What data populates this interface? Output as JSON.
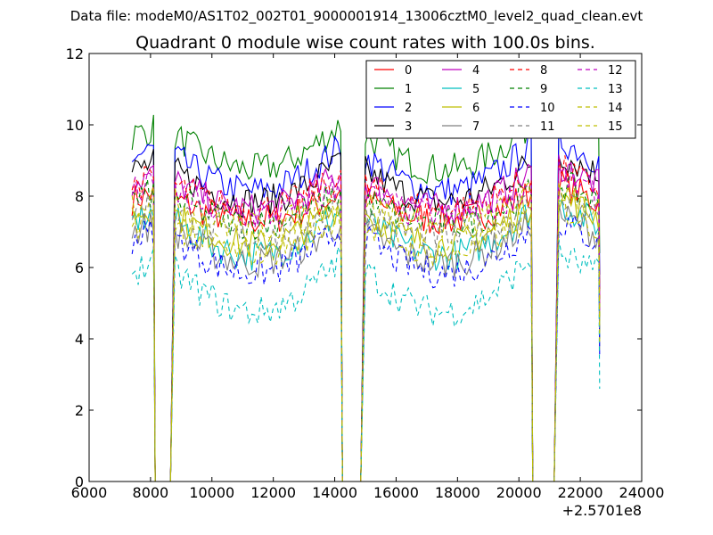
{
  "chart_data": {
    "type": "line",
    "suptitle": "Data file: modeM0/AS1T02_002T01_9000001914_13006cztM0_level2_quad_clean.evt",
    "title": "Quadrant 0 module wise count rates with 100.0s bins.",
    "xlabel": "",
    "ylabel": "",
    "x_offset_label": "+2.5701e8",
    "xlim": [
      6000,
      24000
    ],
    "ylim": [
      0,
      12
    ],
    "xticks": [
      6000,
      8000,
      10000,
      12000,
      14000,
      16000,
      18000,
      20000,
      22000,
      24000
    ],
    "yticks": [
      0,
      2,
      4,
      6,
      8,
      10,
      12
    ],
    "xtick_labels": [
      "6000",
      "8000",
      "10000",
      "12000",
      "14000",
      "16000",
      "18000",
      "20000",
      "22000",
      "24000"
    ],
    "ytick_labels": [
      "0",
      "2",
      "4",
      "6",
      "8",
      "10",
      "12"
    ],
    "grid": false,
    "legend_position": "top-right",
    "segments": [
      {
        "start": 7400,
        "end": 8100,
        "shape": "rise"
      },
      {
        "start": 8800,
        "end": 14200,
        "shape": "dip"
      },
      {
        "start": 15000,
        "end": 20400,
        "shape": "dip"
      },
      {
        "start": 21300,
        "end": 22600,
        "shape": "fall"
      }
    ],
    "gaps": [
      [
        8200,
        8700
      ],
      [
        14300,
        14900
      ],
      [
        20500,
        21200
      ]
    ],
    "series": [
      {
        "name": "0",
        "color": "#ff0000",
        "dashed": false,
        "level": 7.9,
        "dip": 0.6
      },
      {
        "name": "1",
        "color": "#008000",
        "dashed": false,
        "level": 9.7,
        "dip": 1.0
      },
      {
        "name": "2",
        "color": "#0000ff",
        "dashed": false,
        "level": 9.1,
        "dip": 1.0
      },
      {
        "name": "3",
        "color": "#000000",
        "dashed": false,
        "level": 8.7,
        "dip": 0.9
      },
      {
        "name": "4",
        "color": "#bf00bf",
        "dashed": false,
        "level": 8.4,
        "dip": 0.8
      },
      {
        "name": "5",
        "color": "#00bfbf",
        "dashed": false,
        "level": 7.3,
        "dip": 1.0
      },
      {
        "name": "6",
        "color": "#bfbf00",
        "dashed": false,
        "level": 7.5,
        "dip": 0.9
      },
      {
        "name": "7",
        "color": "#808080",
        "dashed": false,
        "level": 7.0,
        "dip": 0.9
      },
      {
        "name": "8",
        "color": "#ff0000",
        "dashed": true,
        "level": 8.3,
        "dip": 0.7
      },
      {
        "name": "9",
        "color": "#008000",
        "dashed": true,
        "level": 7.9,
        "dip": 0.7
      },
      {
        "name": "10",
        "color": "#0000ff",
        "dashed": true,
        "level": 6.8,
        "dip": 1.0
      },
      {
        "name": "11",
        "color": "#808080",
        "dashed": true,
        "level": 7.6,
        "dip": 0.8
      },
      {
        "name": "12",
        "color": "#bf00bf",
        "dashed": true,
        "level": 8.1,
        "dip": 0.7
      },
      {
        "name": "13",
        "color": "#00bfbf",
        "dashed": true,
        "level": 5.9,
        "dip": 1.2
      },
      {
        "name": "14",
        "color": "#bfbf00",
        "dashed": true,
        "level": 7.2,
        "dip": 0.8
      },
      {
        "name": "15",
        "color": "#bfbf00",
        "dashed": true,
        "level": 7.8,
        "dip": 0.7
      }
    ]
  }
}
